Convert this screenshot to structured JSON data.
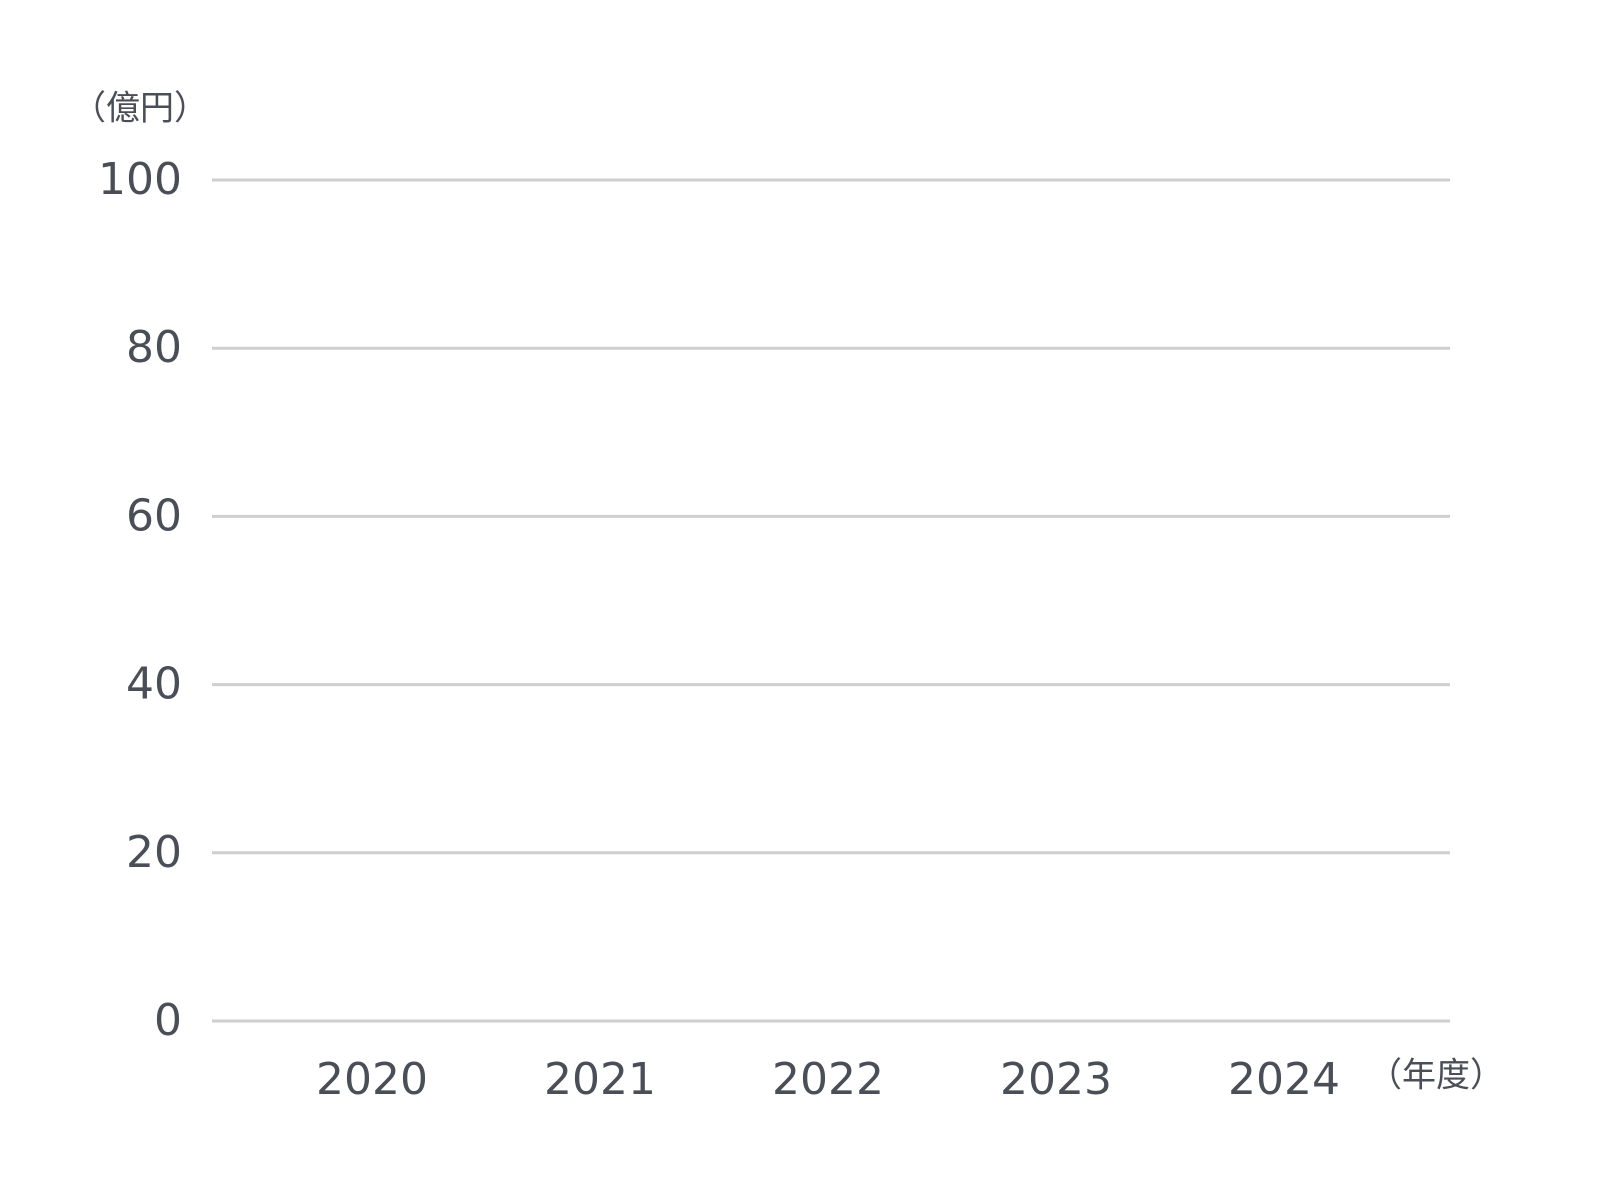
{
  "chart_data": {
    "type": "bar",
    "y_label": "（億円）",
    "x_label": "（年度）",
    "categories": [
      "2020",
      "2021",
      "2022",
      "2023",
      "2024"
    ],
    "ylim": [
      0,
      100
    ],
    "yticks": [
      0,
      20,
      40,
      60,
      80,
      100
    ],
    "grid": true
  }
}
